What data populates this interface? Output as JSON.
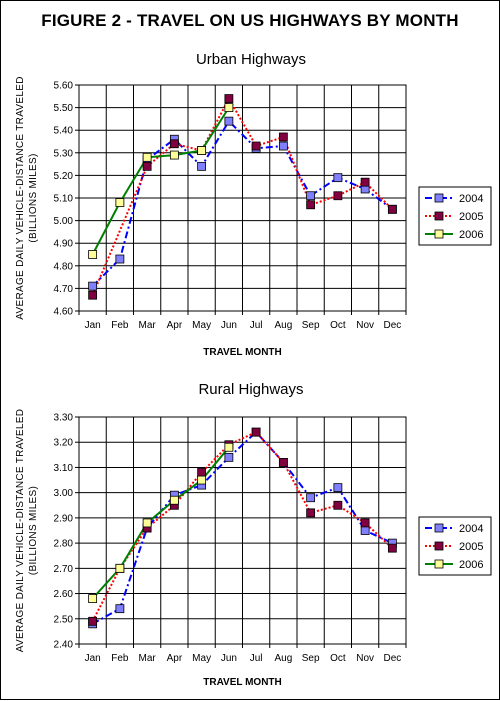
{
  "figure": {
    "title": "FIGURE 2 - TRAVEL ON US HIGHWAYS BY MONTH"
  },
  "chart_data": [
    {
      "type": "line",
      "title": "Urban Highways",
      "xlabel": "TRAVEL MONTH",
      "ylabel": [
        "AVERAGE DAILY VEHICLE-DISTANCE TRAVELED",
        "(BILLIONS MILES)"
      ],
      "categories": [
        "Jan",
        "Feb",
        "Mar",
        "Apr",
        "May",
        "Jun",
        "Jul",
        "Aug",
        "Sep",
        "Oct",
        "Nov",
        "Dec"
      ],
      "ylim": [
        4.6,
        5.6
      ],
      "yticks": [
        "4.60",
        "4.70",
        "4.80",
        "4.90",
        "5.00",
        "5.10",
        "5.20",
        "5.30",
        "5.40",
        "5.50",
        "5.60"
      ],
      "grid": true,
      "legend": "right",
      "series": [
        {
          "name": "2004",
          "line_color": "#0000FF",
          "marker_color": "#8080FF",
          "dash": "dash-dot",
          "values": [
            4.71,
            4.83,
            5.27,
            5.36,
            5.24,
            5.44,
            5.32,
            5.33,
            5.11,
            5.19,
            5.14,
            5.05
          ]
        },
        {
          "name": "2005",
          "line_color": "#FF0000",
          "marker_color": "#800040",
          "dash": "dot",
          "values": [
            4.67,
            null,
            5.24,
            5.34,
            5.31,
            5.54,
            5.33,
            5.37,
            5.07,
            5.11,
            5.17,
            5.05
          ]
        },
        {
          "name": "2006",
          "line_color": "#008000",
          "marker_color": "#FFFF99",
          "dash": "solid",
          "values": [
            4.85,
            5.08,
            5.28,
            5.29,
            5.31,
            5.5,
            null,
            null,
            null,
            null,
            null,
            null
          ]
        }
      ]
    },
    {
      "type": "line",
      "title": "Rural Highways",
      "xlabel": "TRAVEL MONTH",
      "ylabel": [
        "AVERAGE DAILY VEHICLE-DISTANCE TRAVELED",
        "(BILLIONS MILES)"
      ],
      "categories": [
        "Jan",
        "Feb",
        "Mar",
        "Apr",
        "May",
        "Jun",
        "Jul",
        "Aug",
        "Sep",
        "Oct",
        "Nov",
        "Dec"
      ],
      "ylim": [
        2.4,
        3.3
      ],
      "yticks": [
        "2.40",
        "2.50",
        "2.60",
        "2.70",
        "2.80",
        "2.90",
        "3.00",
        "3.10",
        "3.20",
        "3.30"
      ],
      "grid": true,
      "legend": "right",
      "series": [
        {
          "name": "2004",
          "line_color": "#0000FF",
          "marker_color": "#8080FF",
          "dash": "dash-dot",
          "values": [
            2.48,
            2.54,
            2.86,
            2.99,
            3.03,
            3.14,
            3.24,
            3.12,
            2.98,
            3.02,
            2.85,
            2.8
          ]
        },
        {
          "name": "2005",
          "line_color": "#FF0000",
          "marker_color": "#800040",
          "dash": "dot",
          "values": [
            2.49,
            2.7,
            2.86,
            2.95,
            3.08,
            3.19,
            3.24,
            3.12,
            2.92,
            2.95,
            2.88,
            2.78
          ]
        },
        {
          "name": "2006",
          "line_color": "#008000",
          "marker_color": "#FFFF99",
          "dash": "solid",
          "values": [
            2.58,
            2.7,
            2.88,
            2.97,
            3.05,
            3.18,
            null,
            null,
            null,
            null,
            null,
            null
          ]
        }
      ]
    }
  ]
}
